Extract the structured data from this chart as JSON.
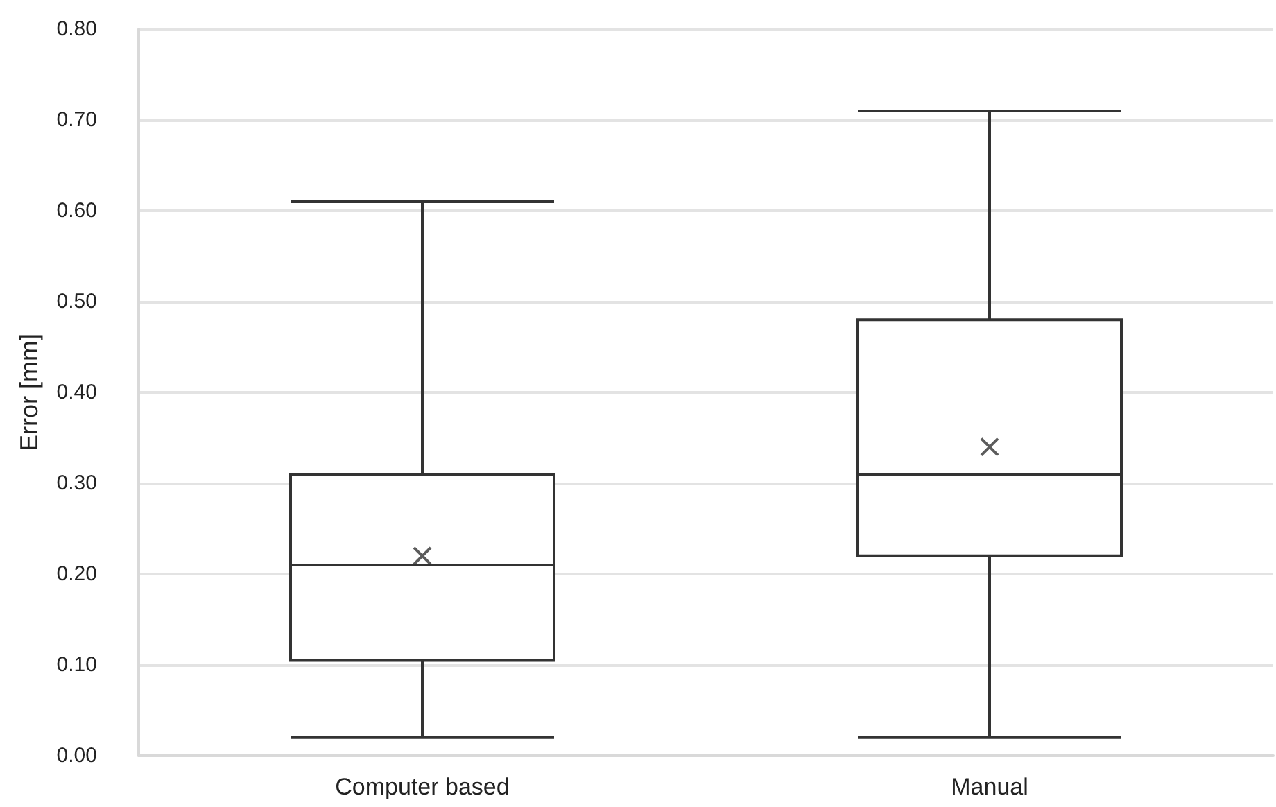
{
  "chart_data": {
    "type": "box",
    "ylabel": "Error [mm]",
    "categories": [
      "Computer based",
      "Manual"
    ],
    "color": "#333333",
    "boxes": [
      {
        "low": 0.02,
        "q1": 0.105,
        "median": 0.21,
        "q3": 0.31,
        "high": 0.61,
        "mean": 0.22
      },
      {
        "low": 0.02,
        "q1": 0.22,
        "median": 0.31,
        "q3": 0.48,
        "high": 0.71,
        "mean": 0.34
      }
    ],
    "ylim": [
      0,
      0.8
    ],
    "yticks": [
      {
        "value": 0,
        "label": "0.00"
      },
      {
        "value": 0.1,
        "label": "0.10"
      },
      {
        "value": 0.2,
        "label": "0.20"
      },
      {
        "value": 0.3,
        "label": "0.30"
      },
      {
        "value": 0.4,
        "label": "0.40"
      },
      {
        "value": 0.5,
        "label": "0.50"
      },
      {
        "value": 0.6,
        "label": "0.60"
      },
      {
        "value": 0.7,
        "label": "0.70"
      },
      {
        "value": 0.8,
        "label": "0.80"
      }
    ],
    "grid": "y",
    "marker": "cross"
  }
}
